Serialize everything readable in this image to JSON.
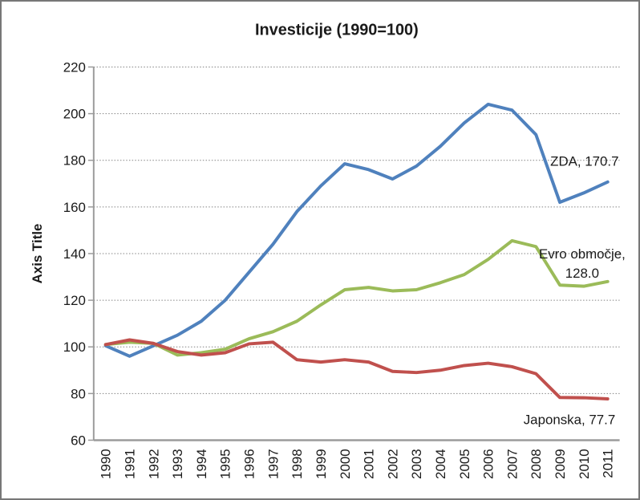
{
  "window": {
    "background": "#FFFFFF",
    "frame_color": "#777777"
  },
  "chart_data": {
    "type": "line",
    "title": "Investicije (1990=100)",
    "xlabel": "",
    "ylabel": "Axis Title",
    "ylim": [
      60,
      220
    ],
    "y_ticks": [
      220,
      200,
      180,
      160,
      140,
      120,
      100,
      80,
      60
    ],
    "grid": "horizontal dotted gray",
    "legend": "none (direct series end labels)",
    "axis_color": "#9B9B9B",
    "gridline_color": "#848484",
    "categories": [
      "1990",
      "1991",
      "1992",
      "1993",
      "1994",
      "1995",
      "1996",
      "1997",
      "1998",
      "1999",
      "2000",
      "2001",
      "2002",
      "2003",
      "2004",
      "2005",
      "2006",
      "2007",
      "2008",
      "2009",
      "2010",
      "2011"
    ],
    "series": [
      {
        "name": "ZDA",
        "color": "#4F81BD",
        "label_lines": [
          "ZDA, 170.7"
        ],
        "end_value": 170.7,
        "values": [
          100.5,
          96,
          100.5,
          105,
          111,
          120,
          132,
          144,
          158,
          169,
          178.5,
          176,
          172,
          177.5,
          186,
          196,
          204,
          201.5,
          191,
          162,
          166,
          170.7
        ]
      },
      {
        "name": "Evro območje",
        "color": "#9BBB59",
        "label_lines": [
          "Evro območje,",
          "128.0"
        ],
        "end_value": 128.0,
        "values": [
          101,
          102,
          101.5,
          96.5,
          97.5,
          99,
          103.5,
          106.5,
          111,
          118,
          124.5,
          125.5,
          124,
          124.5,
          127.5,
          131,
          137.5,
          145.5,
          143,
          126.5,
          126,
          128.0
        ]
      },
      {
        "name": "Japonska",
        "color": "#C0504D",
        "label_lines": [
          "Japonska, 77.7"
        ],
        "end_value": 77.7,
        "values": [
          101,
          103,
          101.5,
          98,
          96.5,
          97.5,
          101.3,
          102,
          94.5,
          93.5,
          94.5,
          93.5,
          89.5,
          89,
          90,
          92,
          93,
          91.5,
          88.5,
          78.3,
          78.2,
          77.7
        ]
      }
    ]
  }
}
